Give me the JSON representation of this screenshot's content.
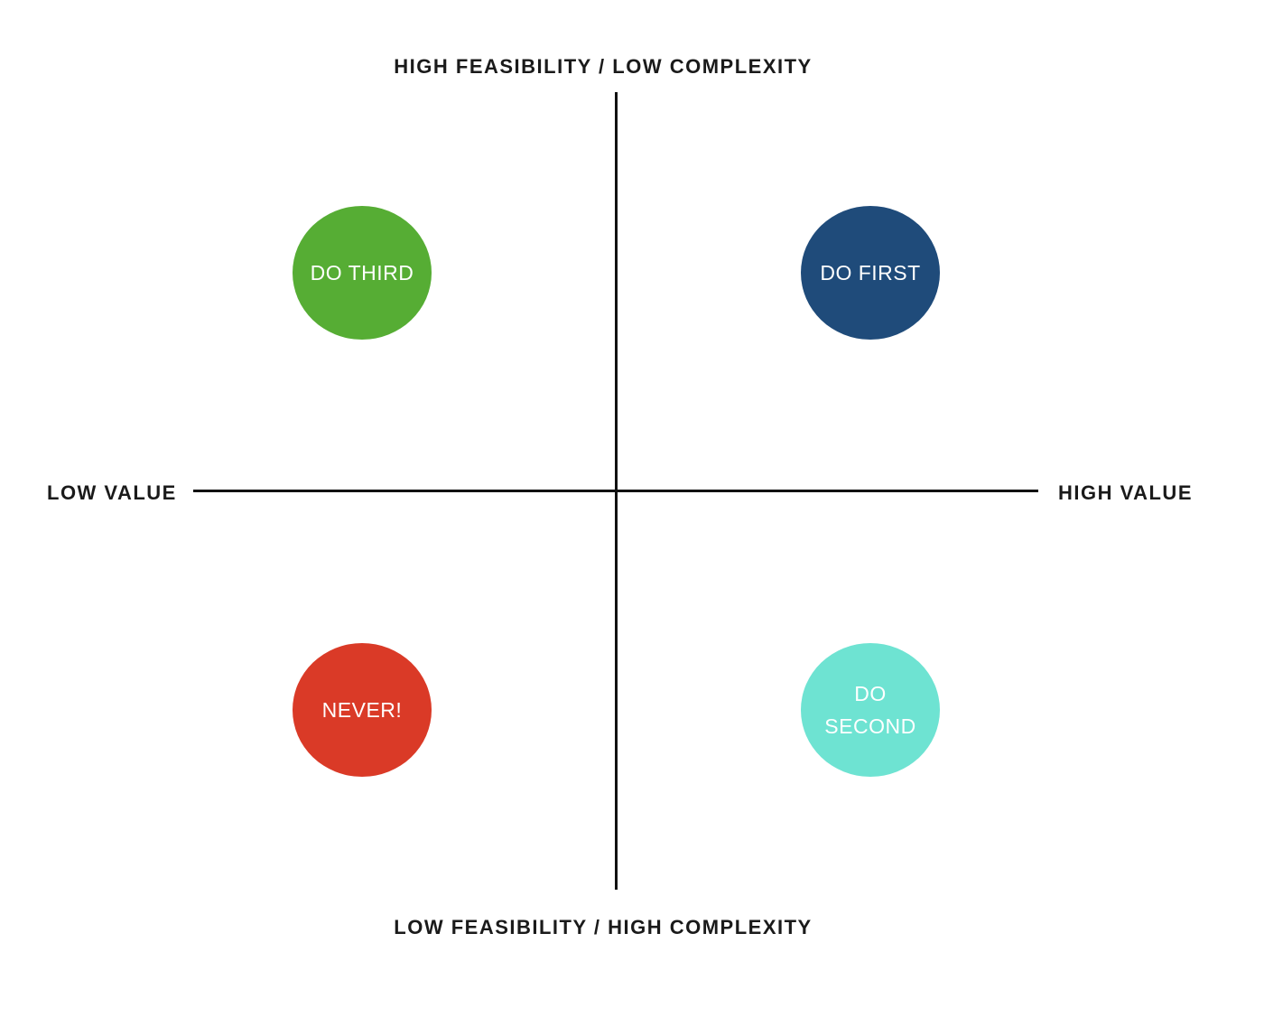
{
  "axes": {
    "top": "HIGH FEASIBILITY / LOW COMPLEXITY",
    "bottom": "LOW FEASIBILITY / HIGH COMPLEXITY",
    "left": "LOW VALUE",
    "right": "HIGH VALUE"
  },
  "quadrants": [
    {
      "label": "DO THIRD",
      "color": "#56ad34"
    },
    {
      "label": "DO FIRST",
      "color": "#1f4b7a"
    },
    {
      "label": "NEVER!",
      "color": "#da3a27"
    },
    {
      "label": "DO SECOND",
      "color": "#6ee3d2"
    }
  ]
}
